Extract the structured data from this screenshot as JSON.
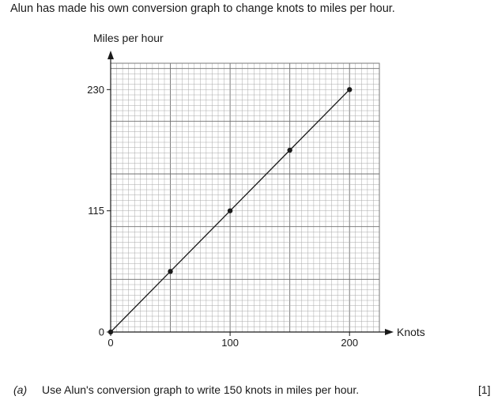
{
  "intro_text": "Alun has made his own conversion graph to change knots to miles per hour.",
  "chart_data": {
    "type": "line",
    "ylabel": "Miles per hour",
    "xlabel": "Knots",
    "x_ticks": [
      0,
      100,
      200
    ],
    "y_ticks": [
      0,
      115,
      230
    ],
    "xlim": [
      0,
      225
    ],
    "ylim": [
      0,
      255
    ],
    "grid": true,
    "points": [
      {
        "x": 0,
        "y": 0
      },
      {
        "x": 50,
        "y": 57.5
      },
      {
        "x": 100,
        "y": 115
      },
      {
        "x": 150,
        "y": 172.5
      },
      {
        "x": 200,
        "y": 230
      }
    ]
  },
  "question": {
    "part": "(a)",
    "text": "Use Alun's conversion graph to write 150 knots in miles per hour.",
    "marks": "[1]"
  }
}
